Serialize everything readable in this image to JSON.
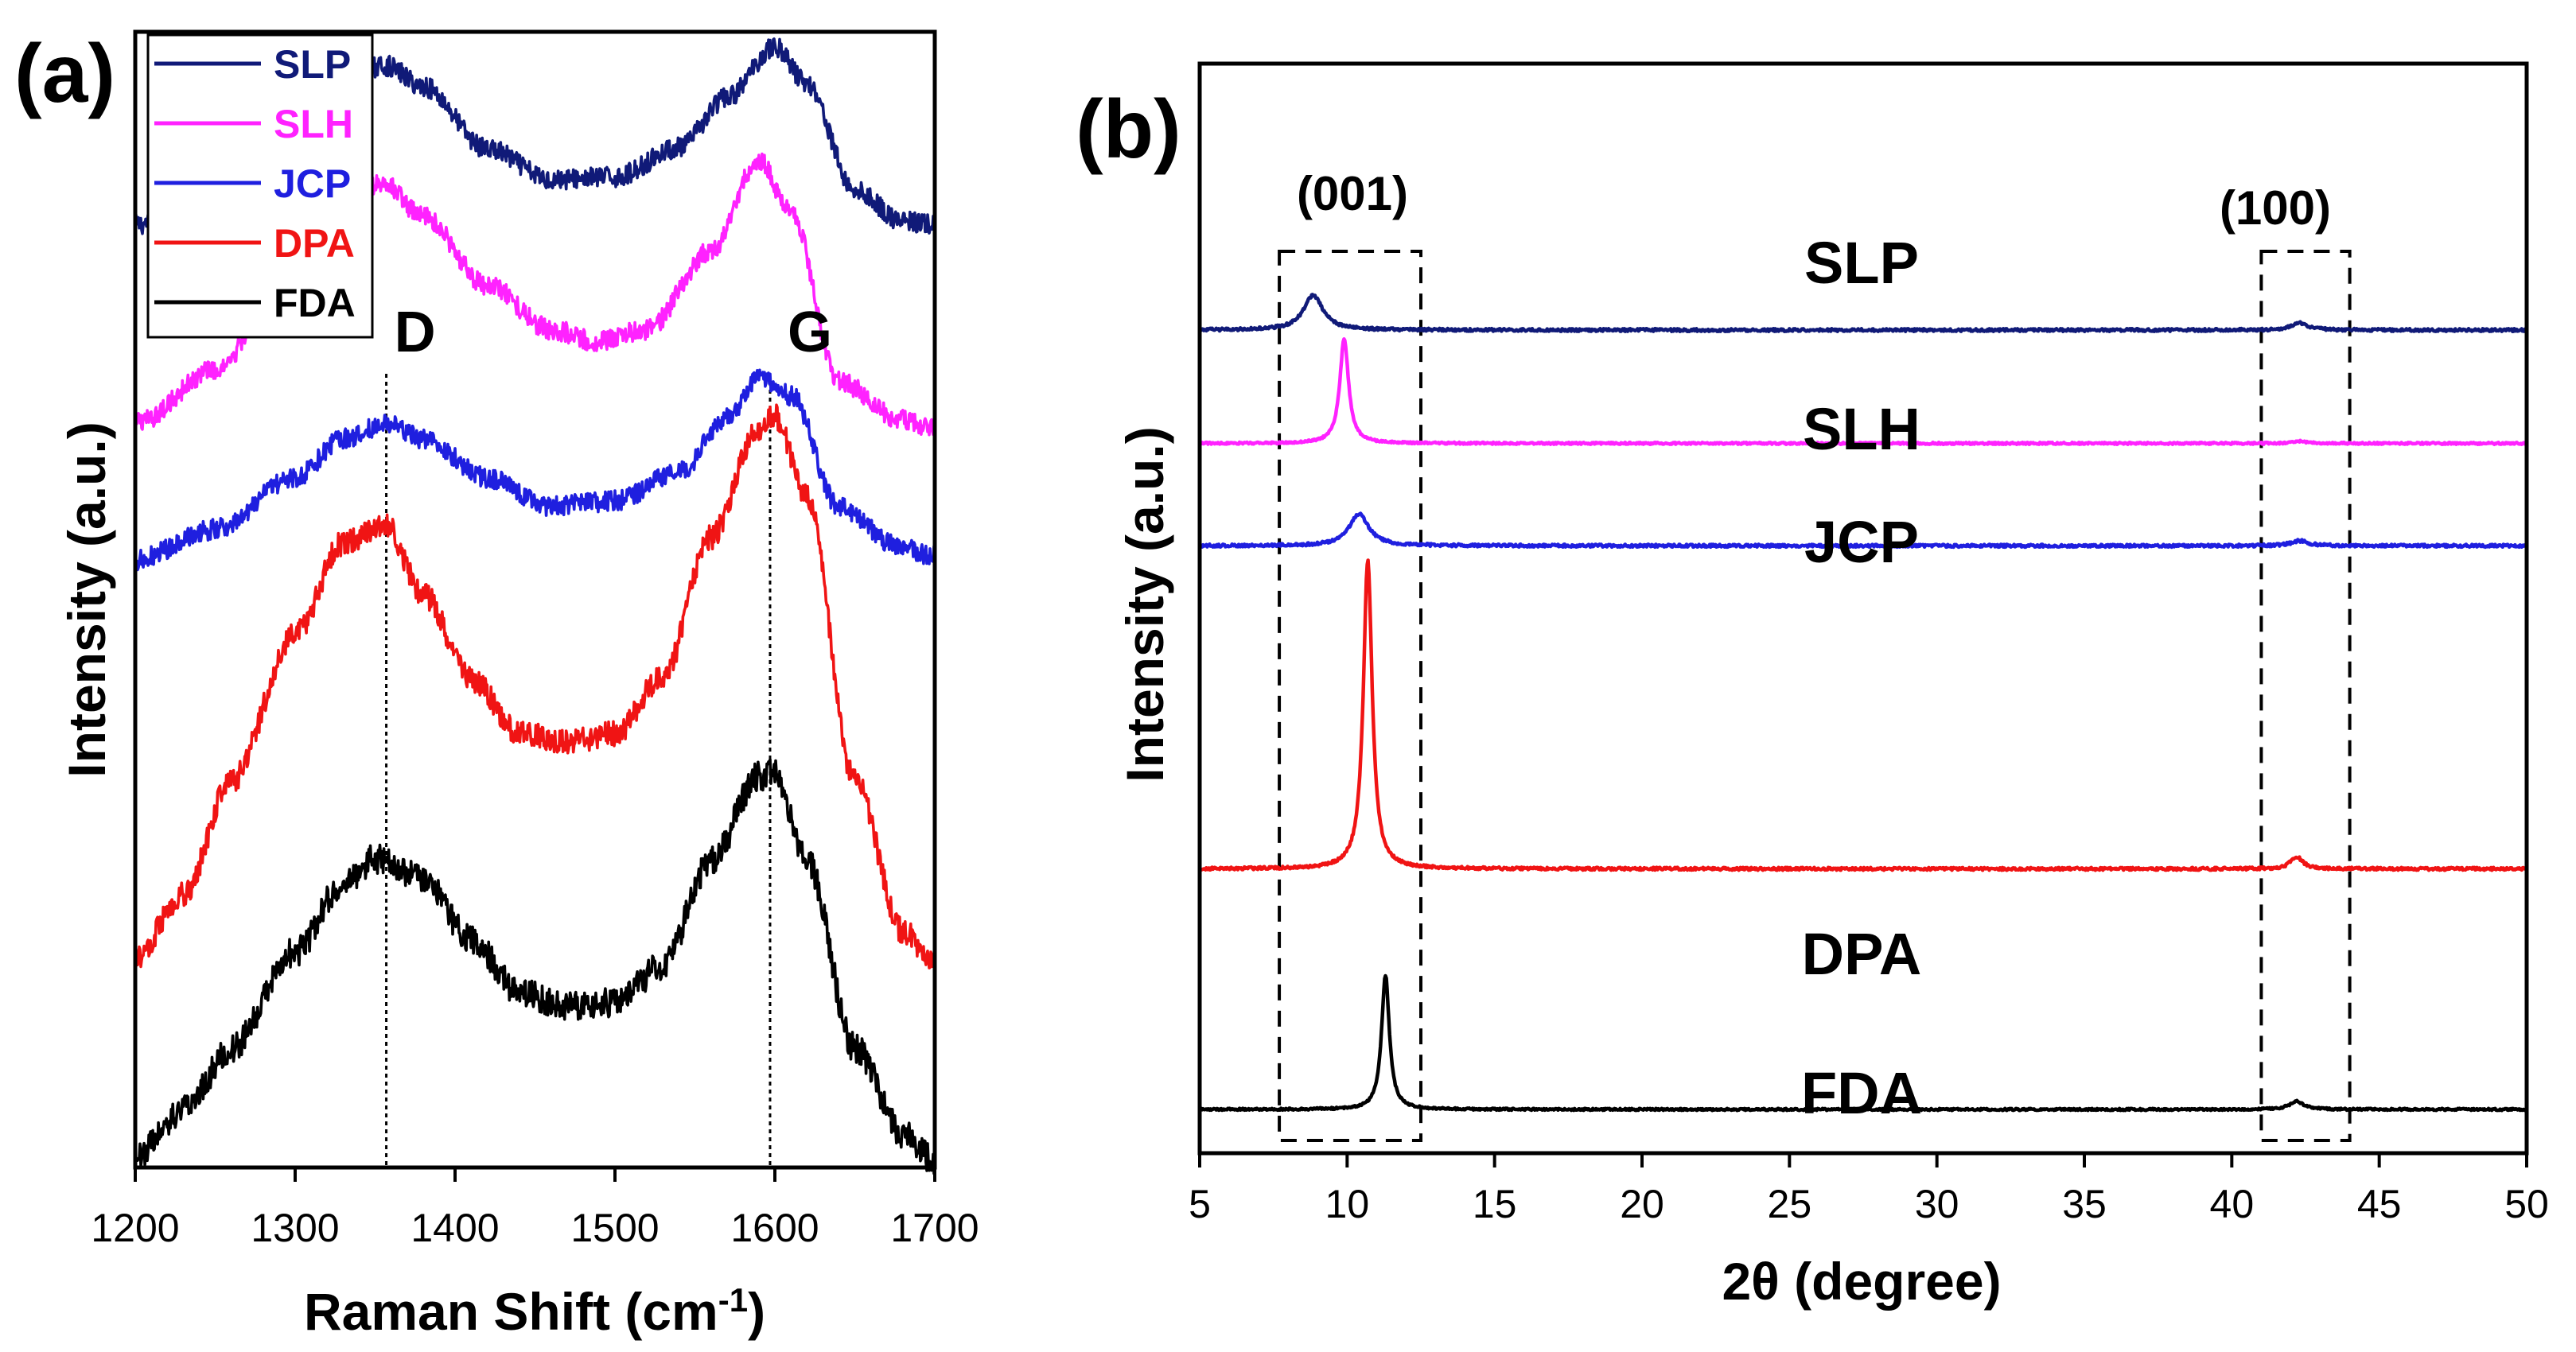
{
  "figure": {
    "background": "#ffffff"
  },
  "chart_data": [
    {
      "id": "raman",
      "type": "line",
      "panel_label": "(a)",
      "xlabel": "Raman Shift (cm",
      "xlabel_superscript": "-1",
      "xlabel_suffix": ")",
      "ylabel": "Intensity (a.u.)",
      "xlim": [
        1200,
        1700
      ],
      "ylim": [
        0,
        10
      ],
      "xticks": [
        1200,
        1300,
        1400,
        1500,
        1600,
        1700
      ],
      "yticks_visible": false,
      "peak_markers": [
        {
          "label": "D",
          "x": 1357
        },
        {
          "label": "G",
          "x": 1597
        }
      ],
      "legend": {
        "placement": "top-left",
        "entries": [
          "SLP",
          "SLH",
          "JCP",
          "DPA",
          "FDA"
        ]
      },
      "series": [
        {
          "name": "SLP",
          "color": "#101a78",
          "noise": 0.09,
          "x": [
            1200,
            1250,
            1300,
            1330,
            1357,
            1380,
            1420,
            1460,
            1500,
            1540,
            1570,
            1600,
            1620,
            1650,
            1680,
            1700
          ],
          "y": [
            8.3,
            8.62,
            9.23,
            9.62,
            9.7,
            9.52,
            8.97,
            8.7,
            8.72,
            8.98,
            9.42,
            9.87,
            9.55,
            8.6,
            8.33,
            8.3
          ]
        },
        {
          "name": "SLH",
          "color": "#ff22ff",
          "noise": 0.09,
          "x": [
            1200,
            1250,
            1300,
            1330,
            1355,
            1380,
            1420,
            1460,
            1490,
            1520,
            1560,
            1590,
            1610,
            1640,
            1680,
            1700
          ],
          "y": [
            6.55,
            7.02,
            7.97,
            8.55,
            8.67,
            8.37,
            7.77,
            7.38,
            7.27,
            7.38,
            8.07,
            8.87,
            8.42,
            6.92,
            6.58,
            6.52
          ]
        },
        {
          "name": "JCP",
          "color": "#1f1fdf",
          "noise": 0.09,
          "x": [
            1200,
            1250,
            1300,
            1330,
            1357,
            1380,
            1420,
            1460,
            1500,
            1540,
            1570,
            1590,
            1610,
            1640,
            1680,
            1700
          ],
          "y": [
            5.35,
            5.62,
            6.07,
            6.42,
            6.55,
            6.42,
            6.07,
            5.82,
            5.87,
            6.12,
            6.6,
            6.95,
            6.8,
            5.82,
            5.45,
            5.38
          ]
        },
        {
          "name": "DPA",
          "color": "#f01414",
          "noise": 0.11,
          "x": [
            1200,
            1230,
            1260,
            1300,
            1330,
            1357,
            1380,
            1410,
            1440,
            1470,
            1500,
            1530,
            1560,
            1590,
            1600,
            1620,
            1650,
            1680,
            1700
          ],
          "y": [
            1.85,
            2.4,
            3.4,
            4.7,
            5.5,
            5.65,
            5.05,
            4.3,
            3.83,
            3.75,
            3.82,
            4.32,
            5.55,
            6.5,
            6.62,
            5.9,
            3.4,
            2.08,
            1.82
          ]
        },
        {
          "name": "FDA",
          "color": "#000000",
          "noise": 0.13,
          "x": [
            1200,
            1230,
            1260,
            1300,
            1330,
            1350,
            1380,
            1410,
            1440,
            1470,
            1500,
            1530,
            1560,
            1590,
            1600,
            1620,
            1650,
            1680,
            1700
          ],
          "y": [
            0.1,
            0.5,
            1.05,
            1.9,
            2.5,
            2.72,
            2.55,
            2.0,
            1.55,
            1.42,
            1.45,
            1.78,
            2.7,
            3.45,
            3.47,
            2.7,
            1.05,
            0.3,
            0.05
          ]
        }
      ]
    },
    {
      "id": "xrd",
      "type": "line",
      "panel_label": "(b)",
      "xlabel": "2θ (degree)",
      "ylabel": "Intensity (a.u.)",
      "xlim": [
        5,
        50
      ],
      "ylim": [
        0,
        10
      ],
      "xticks": [
        5,
        10,
        15,
        20,
        25,
        30,
        35,
        40,
        45,
        50
      ],
      "yticks_visible": false,
      "plane_annotations": [
        {
          "label": "(001)",
          "x_range": [
            7.7,
            12.5
          ]
        },
        {
          "label": "(100)",
          "x_range": [
            41.0,
            44.0
          ]
        }
      ],
      "series": [
        {
          "name": "SLP",
          "color": "#101a78",
          "baseline": 8.12,
          "noise": 0.014,
          "peaks": [
            {
              "x": 8.85,
              "height": 0.35,
              "width": 0.4
            },
            {
              "x": 42.3,
              "height": 0.07,
              "width": 0.35
            }
          ]
        },
        {
          "name": "SLH",
          "color": "#ff22ff",
          "baseline": 6.98,
          "noise": 0.01,
          "peaks": [
            {
              "x": 9.9,
              "height": 1.05,
              "width": 0.18
            },
            {
              "x": 42.3,
              "height": 0.02,
              "width": 0.3
            }
          ]
        },
        {
          "name": "JCP",
          "color": "#1f1fdf",
          "baseline": 5.95,
          "noise": 0.014,
          "peaks": [
            {
              "x": 10.4,
              "height": 0.32,
              "width": 0.4
            },
            {
              "x": 42.3,
              "height": 0.05,
              "width": 0.35
            }
          ]
        },
        {
          "name": "DPA",
          "color": "#f01414",
          "baseline": 2.7,
          "noise": 0.014,
          "peaks": [
            {
              "x": 10.7,
              "height": 3.1,
              "width": 0.18
            },
            {
              "x": 42.2,
              "height": 0.12,
              "width": 0.25
            }
          ]
        },
        {
          "name": "FDA",
          "color": "#000000",
          "baseline": 0.28,
          "noise": 0.01,
          "peaks": [
            {
              "x": 11.3,
              "height": 1.35,
              "width": 0.16
            },
            {
              "x": 42.2,
              "height": 0.08,
              "width": 0.3
            }
          ]
        }
      ]
    }
  ]
}
